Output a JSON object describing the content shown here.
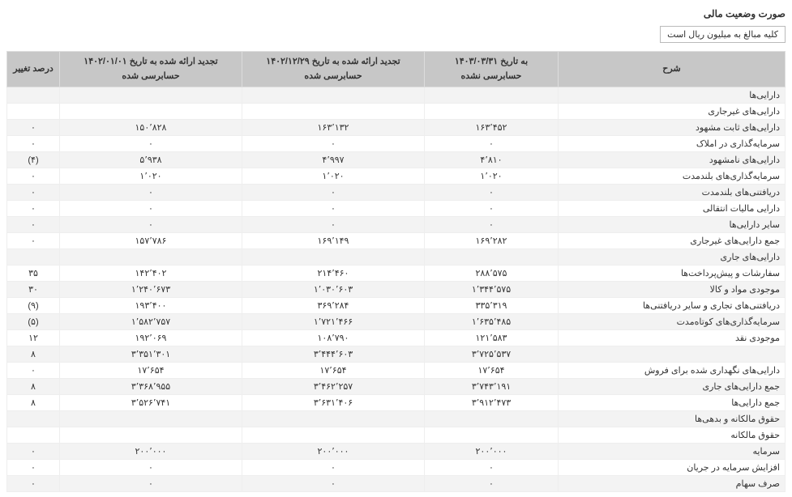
{
  "title": "صورت وضعیت مالی",
  "note": "کلیه مبالغ به میلیون ریال است",
  "headers": {
    "desc": "شرح",
    "col1_line1": "به تاریخ ۱۴۰۳/۰۳/۳۱",
    "col1_line2": "حسابرسی نشده",
    "col2_line1": "تجدید ارائه شده به تاریخ ۱۴۰۲/۱۲/۲۹",
    "col2_line2": "حسابرسی شده",
    "col3_line1": "تجدید ارائه شده به تاریخ ۱۴۰۲/۰۱/۰۱",
    "col3_line2": "حسابرسی شده",
    "chg": "درصد تغییر"
  },
  "rows": [
    {
      "desc": "دارایی‌ها",
      "c1": "",
      "c2": "",
      "c3": "",
      "chg": ""
    },
    {
      "desc": "دارایی‌های غیرجاری",
      "c1": "",
      "c2": "",
      "c3": "",
      "chg": ""
    },
    {
      "desc": "دارایی‌های ثابت مشهود",
      "c1": "۱۶۳٬۴۵۲",
      "c2": "۱۶۳٬۱۳۲",
      "c3": "۱۵۰٬۸۲۸",
      "chg": "۰"
    },
    {
      "desc": "سرمایه‌گذاری در املاک",
      "c1": "۰",
      "c2": "۰",
      "c3": "۰",
      "chg": "۰"
    },
    {
      "desc": "دارایی‌های نامشهود",
      "c1": "۴٬۸۱۰",
      "c2": "۴٬۹۹۷",
      "c3": "۵٬۹۳۸",
      "chg": "(۴)"
    },
    {
      "desc": "سرمایه‌گذاری‌های بلندمدت",
      "c1": "۱٬۰۲۰",
      "c2": "۱٬۰۲۰",
      "c3": "۱٬۰۲۰",
      "chg": "۰"
    },
    {
      "desc": "دریافتنی‌های بلندمدت",
      "c1": "۰",
      "c2": "۰",
      "c3": "۰",
      "chg": "۰"
    },
    {
      "desc": "دارایی مالیات انتقالی",
      "c1": "۰",
      "c2": "۰",
      "c3": "۰",
      "chg": "۰"
    },
    {
      "desc": "سایر دارایی‌ها",
      "c1": "۰",
      "c2": "۰",
      "c3": "۰",
      "chg": "۰"
    },
    {
      "desc": "جمع دارایی‌های غیرجاری",
      "c1": "۱۶۹٬۲۸۲",
      "c2": "۱۶۹٬۱۴۹",
      "c3": "۱۵۷٬۷۸۶",
      "chg": "۰"
    },
    {
      "desc": "دارایی‌های جاری",
      "c1": "",
      "c2": "",
      "c3": "",
      "chg": ""
    },
    {
      "desc": "سفارشات و پیش‌پرداخت‌ها",
      "c1": "۲۸۸٬۵۷۵",
      "c2": "۲۱۴٬۴۶۰",
      "c3": "۱۴۲٬۴۰۲",
      "chg": "۳۵"
    },
    {
      "desc": "موجودی مواد و کالا",
      "c1": "۱٬۳۴۴٬۵۷۵",
      "c2": "۱٬۰۳۰٬۶۰۳",
      "c3": "۱٬۲۴۰٬۶۷۳",
      "chg": "۳۰"
    },
    {
      "desc": "دریافتنی‌های تجاری و سایر دریافتنی‌ها",
      "c1": "۳۳۵٬۳۱۹",
      "c2": "۳۶۹٬۲۸۴",
      "c3": "۱۹۳٬۴۰۰",
      "chg": "(۹)"
    },
    {
      "desc": "سرمایه‌گذاری‌های کوتاه‌مدت",
      "c1": "۱٬۶۳۵٬۴۸۵",
      "c2": "۱٬۷۲۱٬۴۶۶",
      "c3": "۱٬۵۸۲٬۷۵۷",
      "chg": "(۵)"
    },
    {
      "desc": "موجودی نقد",
      "c1": "۱۲۱٬۵۸۳",
      "c2": "۱۰۸٬۷۹۰",
      "c3": "۱۹۲٬۰۶۹",
      "chg": "۱۲"
    },
    {
      "desc": "",
      "c1": "۳٬۷۲۵٬۵۳۷",
      "c2": "۳٬۴۴۴٬۶۰۳",
      "c3": "۳٬۳۵۱٬۳۰۱",
      "chg": "۸"
    },
    {
      "desc": "دارایی‌های نگهداری شده برای فروش",
      "c1": "۱۷٬۶۵۴",
      "c2": "۱۷٬۶۵۴",
      "c3": "۱۷٬۶۵۴",
      "chg": "۰"
    },
    {
      "desc": "جمع دارایی‌های جاری",
      "c1": "۳٬۷۴۳٬۱۹۱",
      "c2": "۳٬۴۶۲٬۲۵۷",
      "c3": "۳٬۳۶۸٬۹۵۵",
      "chg": "۸"
    },
    {
      "desc": "جمع دارایی‌ها",
      "c1": "۳٬۹۱۲٬۴۷۳",
      "c2": "۳٬۶۳۱٬۴۰۶",
      "c3": "۳٬۵۲۶٬۷۴۱",
      "chg": "۸"
    },
    {
      "desc": "حقوق مالکانه و بدهی‌ها",
      "c1": "",
      "c2": "",
      "c3": "",
      "chg": ""
    },
    {
      "desc": "حقوق مالکانه",
      "c1": "",
      "c2": "",
      "c3": "",
      "chg": ""
    },
    {
      "desc": "سرمایه",
      "c1": "۲۰۰٬۰۰۰",
      "c2": "۲۰۰٬۰۰۰",
      "c3": "۲۰۰٬۰۰۰",
      "chg": "۰"
    },
    {
      "desc": "افزایش سرمایه در جریان",
      "c1": "۰",
      "c2": "۰",
      "c3": "۰",
      "chg": "۰"
    },
    {
      "desc": "صرف سهام",
      "c1": "۰",
      "c2": "۰",
      "c3": "۰",
      "chg": "۰"
    }
  ]
}
